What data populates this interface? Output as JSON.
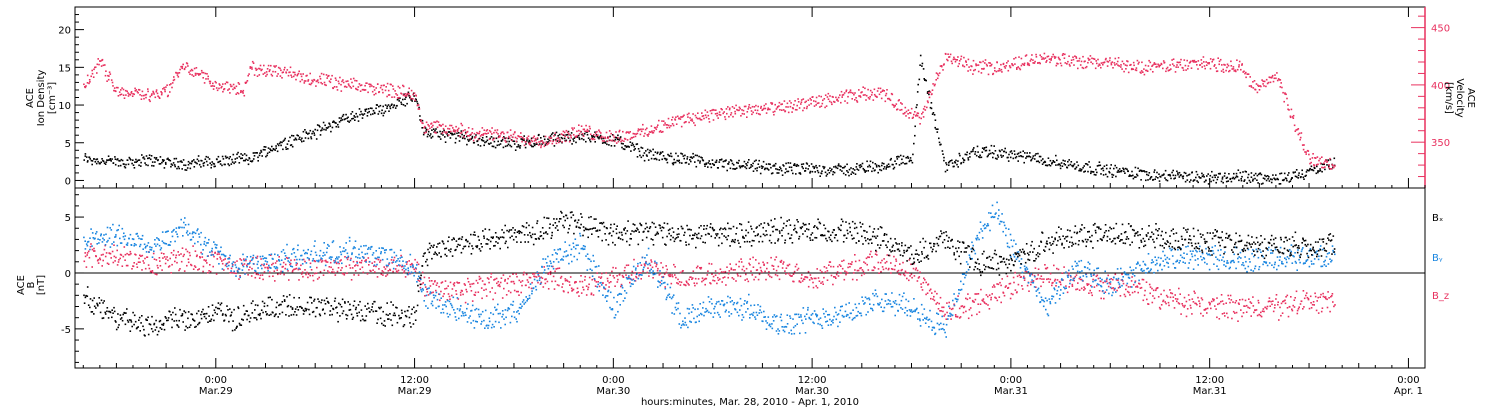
{
  "colors": {
    "density": "#000000",
    "velocity": "#e8315f",
    "bx": "#000000",
    "by": "#1a86e0",
    "bz": "#e8315f",
    "axis": "#000000",
    "velocity_axis": "#e8315f"
  },
  "x_axis": {
    "label": "hours:minutes, Mar. 28, 2010 - Apr. 1, 2010",
    "range_hours": [
      -8.5,
      73.0
    ],
    "ticks": [
      {
        "hours": 0,
        "time": "0:00",
        "date": "Mar.29"
      },
      {
        "hours": 12,
        "time": "12:00",
        "date": "Mar.29"
      },
      {
        "hours": 24,
        "time": "0:00",
        "date": "Mar.30"
      },
      {
        "hours": 36,
        "time": "12:00",
        "date": "Mar.30"
      },
      {
        "hours": 48,
        "time": "0:00",
        "date": "Mar.31"
      },
      {
        "hours": 60,
        "time": "12:00",
        "date": "Mar.31"
      },
      {
        "hours": 72,
        "time": "0:00",
        "date": "Apr. 1"
      }
    ]
  },
  "chart_data": [
    {
      "type": "scatter",
      "panel": "plasma",
      "ylabel_left": [
        "ACE",
        "Ion Density",
        "[cm⁻³]"
      ],
      "ylabel_right": [
        "ACE",
        "Velocity",
        "[km/s]"
      ],
      "ylim_left": [
        -1,
        23
      ],
      "ylim_right": [
        310,
        468
      ],
      "yticks_left": [
        0,
        5,
        10,
        15,
        20
      ],
      "yticks_right": [
        350,
        400,
        450
      ],
      "series": [
        {
          "key": "density",
          "axis": "left",
          "x_hours": [
            -8,
            -6,
            -4,
            -2,
            0,
            2,
            4,
            6,
            8,
            10,
            12,
            12.5,
            14,
            16,
            18,
            20,
            22,
            24,
            26,
            28,
            30,
            32,
            34,
            36,
            38,
            40,
            42,
            42.5,
            44,
            46,
            48,
            50,
            52,
            54,
            56,
            58,
            60,
            62,
            64,
            65,
            66,
            67,
            67.5
          ],
          "values": [
            3,
            2.5,
            2.8,
            2.3,
            2.6,
            3,
            5,
            6.5,
            8.5,
            9.5,
            11.5,
            6.5,
            6,
            5.5,
            5,
            5.5,
            6,
            5.5,
            3.5,
            3,
            2.3,
            2,
            1.6,
            1.6,
            1.5,
            2,
            3,
            16,
            2,
            4,
            3.5,
            2.8,
            2,
            1.4,
            1,
            0.6,
            0.5,
            0.6,
            0.3,
            0.8,
            1.2,
            2,
            2.3
          ]
        },
        {
          "key": "velocity",
          "axis": "right",
          "x_hours": [
            -8,
            -7,
            -6,
            -4,
            -3,
            -2,
            0,
            1,
            1.7,
            2,
            4,
            6,
            8,
            10,
            12,
            12.5,
            14,
            16,
            18,
            20,
            22,
            24,
            26,
            28,
            30,
            32,
            34,
            36,
            38,
            40,
            42,
            42.5,
            44,
            46,
            48,
            50,
            52,
            54,
            56,
            58,
            60,
            62,
            62.5,
            63,
            64,
            65,
            66,
            67,
            67.5
          ],
          "values": [
            400,
            420,
            395,
            392,
            395,
            418,
            400,
            398,
            395,
            415,
            412,
            405,
            400,
            397,
            393,
            365,
            362,
            358,
            355,
            352,
            360,
            355,
            360,
            370,
            375,
            378,
            380,
            385,
            390,
            395,
            375,
            370,
            425,
            415,
            418,
            425,
            420,
            420,
            415,
            418,
            420,
            415,
            400,
            398,
            410,
            370,
            335,
            332,
            330
          ]
        }
      ]
    },
    {
      "type": "scatter",
      "panel": "magnetic",
      "ylabel_left": [
        "ACE",
        "B",
        "[nT]"
      ],
      "ylim": [
        -8.5,
        7.6
      ],
      "yticks": [
        -5,
        0,
        5
      ],
      "zero_line": true,
      "legend": [
        "Bₓ",
        "Bᵧ",
        "B_z"
      ],
      "series": [
        {
          "key": "bx",
          "name": "Bₓ",
          "x_hours": [
            -8,
            -6,
            -4,
            -3,
            -2,
            0,
            1,
            2,
            4,
            6,
            8,
            10,
            12,
            12.5,
            14,
            16,
            18,
            20,
            21,
            22,
            24,
            26,
            28,
            30,
            32,
            34,
            36,
            38,
            40,
            42,
            44,
            46,
            48,
            50,
            52,
            54,
            56,
            58,
            60,
            62,
            64,
            66,
            67.5
          ],
          "values": [
            -2,
            -4,
            -5,
            -4,
            -4,
            -3.5,
            -4,
            -3.5,
            -3,
            -3,
            -3.2,
            -3.6,
            -3.8,
            1.5,
            2.5,
            3,
            3.5,
            4,
            5,
            4.5,
            3.5,
            3.8,
            3.5,
            3.5,
            3.6,
            3.8,
            3.7,
            3.8,
            3.2,
            1.5,
            3,
            1,
            1,
            2.8,
            3.5,
            3.5,
            3.5,
            3.2,
            2.8,
            2.5,
            2.5,
            2.5,
            2.5
          ]
        },
        {
          "key": "by",
          "name": "Bᵧ",
          "x_hours": [
            -8,
            -6,
            -4,
            -3,
            -2,
            0,
            1,
            2,
            4,
            6,
            8,
            10,
            12,
            12.5,
            14,
            16,
            18,
            20,
            22,
            24,
            26,
            28,
            30,
            32,
            34,
            36,
            38,
            40,
            42,
            44,
            46,
            47,
            48,
            50,
            52,
            54,
            56,
            58,
            60,
            62,
            64,
            66,
            67.5
          ],
          "values": [
            3,
            3.5,
            2.5,
            3,
            4,
            2,
            0.5,
            1,
            1.3,
            1.8,
            2,
            1.6,
            0.8,
            -2,
            -3,
            -4,
            -3.5,
            1,
            2.5,
            -3,
            1.5,
            -4,
            -3,
            -3,
            -4.5,
            -4,
            -3.5,
            -2.5,
            -3,
            -5,
            3.5,
            5.5,
            2.5,
            -3,
            0.5,
            -1,
            0.5,
            1.5,
            1.5,
            1.2,
            1.5,
            1.5,
            1.5
          ]
        },
        {
          "key": "bz",
          "name": "B_z",
          "x_hours": [
            -8,
            -6,
            -4,
            -3,
            -2,
            0,
            1,
            2,
            4,
            6,
            8,
            10,
            12,
            12.5,
            14,
            16,
            18,
            20,
            22,
            24,
            26,
            28,
            30,
            32,
            34,
            36,
            38,
            40,
            42,
            44,
            46,
            48,
            50,
            52,
            54,
            56,
            58,
            60,
            62,
            64,
            66,
            67.5
          ],
          "values": [
            1.5,
            1.5,
            0.8,
            1,
            1.5,
            1,
            0.5,
            0.5,
            0.5,
            0.5,
            0.6,
            0.7,
            0.8,
            -1,
            -1.5,
            -1.2,
            -1,
            -0.3,
            -1,
            -0.5,
            0.5,
            -0.5,
            0,
            0.5,
            0.5,
            -0.5,
            0.5,
            1,
            0.5,
            -3.5,
            -2.5,
            -1,
            0,
            -1,
            -1,
            -1.5,
            -2.5,
            -3,
            -3,
            -3,
            -2.5,
            -2.5
          ]
        }
      ]
    }
  ]
}
